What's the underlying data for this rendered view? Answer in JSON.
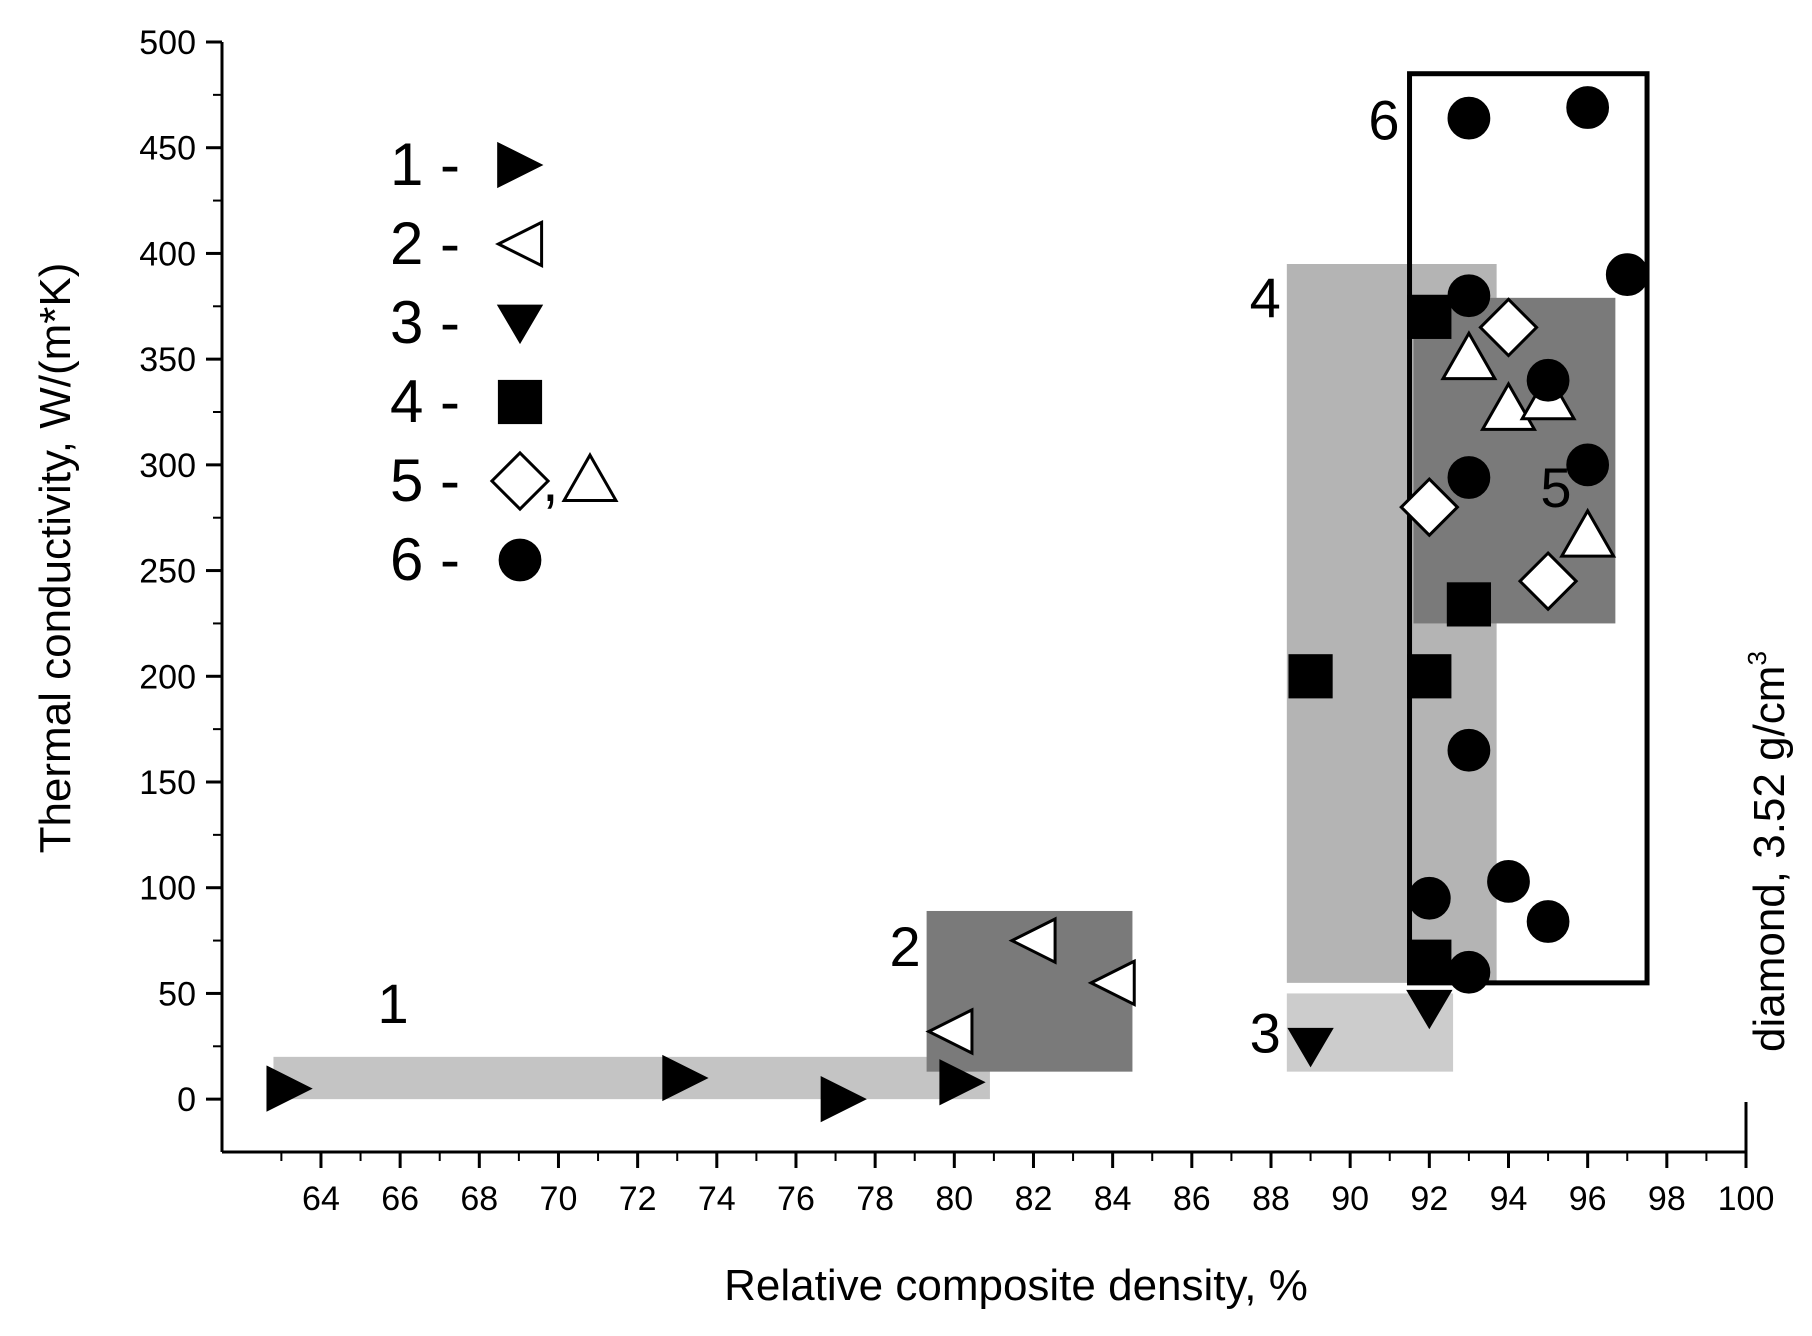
{
  "chart_data": {
    "type": "scatter",
    "title": "",
    "xlabel": "Relative composite density, %",
    "ylabel": "Thermal conductivity, W/(m*K)",
    "xlim": [
      61.5,
      100
    ],
    "ylim": [
      -25,
      500
    ],
    "xticks": [
      64,
      66,
      68,
      70,
      72,
      74,
      76,
      78,
      80,
      82,
      84,
      86,
      88,
      90,
      92,
      94,
      96,
      98,
      100
    ],
    "yticks": [
      0,
      50,
      100,
      150,
      200,
      250,
      300,
      350,
      400,
      450,
      500
    ],
    "grid": false,
    "legend_position": "top-left",
    "legend": [
      {
        "label": "1 -",
        "marker": "triangle-right-filled"
      },
      {
        "label": "2 -",
        "marker": "triangle-left-open"
      },
      {
        "label": "3 -",
        "marker": "triangle-down-filled"
      },
      {
        "label": "4 -",
        "marker": "square-filled"
      },
      {
        "label": "5 -",
        "marker": "diamond-open",
        "separator": ",",
        "marker2": "triangle-up-open"
      },
      {
        "label": "6 -",
        "marker": "circle-filled"
      }
    ],
    "regions": [
      {
        "label": "1",
        "x": [
          62.8,
          80.9
        ],
        "y": [
          0,
          20
        ],
        "style": "fill",
        "color": "#c4c4c4"
      },
      {
        "label": "2",
        "x": [
          79.3,
          84.5
        ],
        "y": [
          13,
          89
        ],
        "style": "fill",
        "color": "#7a7a7a"
      },
      {
        "label": "3",
        "x": [
          88.4,
          92.6
        ],
        "y": [
          13,
          50
        ],
        "style": "fill",
        "color": "#cccccc"
      },
      {
        "label": "4",
        "x": [
          88.4,
          93.7
        ],
        "y": [
          55,
          395
        ],
        "style": "fill",
        "color": "#b4b4b4"
      },
      {
        "label": "5",
        "x": [
          91.6,
          96.7
        ],
        "y": [
          225,
          379
        ],
        "style": "fill",
        "color": "#7a7a7a"
      },
      {
        "label": "6",
        "x": [
          91.5,
          97.5
        ],
        "y": [
          55,
          485
        ],
        "style": "outline",
        "color": "#000000"
      }
    ],
    "series": [
      {
        "name": "1",
        "marker": "triangle-right-filled",
        "x": [
          63.2,
          73.2,
          77.2,
          80.2
        ],
        "y": [
          5,
          10,
          0,
          8
        ]
      },
      {
        "name": "2",
        "marker": "triangle-left-open",
        "x": [
          79.9,
          82.0,
          84.0
        ],
        "y": [
          32,
          75,
          55
        ]
      },
      {
        "name": "3",
        "marker": "triangle-down-filled",
        "x": [
          89.0,
          92.0
        ],
        "y": [
          25,
          43
        ]
      },
      {
        "name": "4",
        "marker": "square-filled",
        "x": [
          89.0,
          92.0,
          92.0,
          92.0,
          93.0
        ],
        "y": [
          200,
          370,
          200,
          65,
          234
        ]
      },
      {
        "name": "5",
        "marker": "diamond-open",
        "x": [
          92.0,
          94.0,
          95.0
        ],
        "y": [
          280,
          365,
          245
        ]
      },
      {
        "name": "5",
        "marker": "triangle-up-open",
        "x": [
          93.0,
          94.0,
          95.0,
          96.0
        ],
        "y": [
          350,
          326,
          331,
          266
        ]
      },
      {
        "name": "6",
        "marker": "circle-filled",
        "x": [
          93.0,
          96.0,
          97.0,
          93.0,
          95.0,
          93.0,
          96.0,
          93.0,
          92.0,
          94.0,
          95.0,
          93.0
        ],
        "y": [
          464,
          469,
          390,
          380,
          340,
          294,
          300,
          165,
          95,
          103,
          84,
          60
        ]
      }
    ],
    "annotations": [
      {
        "text": "diamond, 3.52 g/cm",
        "superscript": "3",
        "x": 100,
        "orientation": "vertical"
      }
    ]
  }
}
